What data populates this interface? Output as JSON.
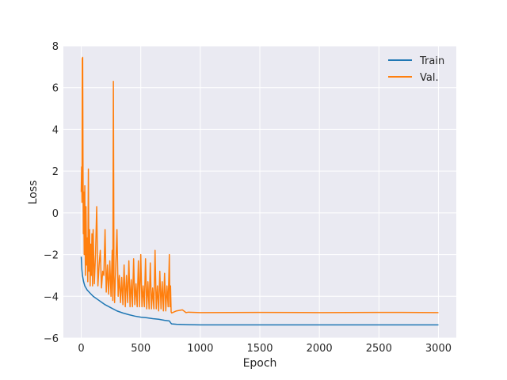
{
  "chart_data": {
    "type": "line",
    "title": "",
    "xlabel": "Epoch",
    "ylabel": "Loss",
    "xlim": [
      -150,
      3150
    ],
    "ylim": [
      -6,
      8
    ],
    "x_ticks": [
      0,
      500,
      1000,
      1500,
      2000,
      2500,
      3000
    ],
    "y_ticks": [
      -6,
      -4,
      -2,
      0,
      2,
      4,
      6,
      8
    ],
    "grid": true,
    "legend_position": "top-right",
    "background_color": "#eaeaf2",
    "grid_color": "#ffffff",
    "series": [
      {
        "name": "Train",
        "color": "#1f77b4",
        "x": [
          0,
          5,
          10,
          20,
          30,
          50,
          75,
          100,
          150,
          200,
          250,
          300,
          350,
          400,
          450,
          500,
          550,
          600,
          650,
          700,
          740,
          755,
          760,
          800,
          900,
          1000,
          1500,
          2000,
          2500,
          3000
        ],
        "y": [
          -2.1,
          -2.7,
          -3.0,
          -3.3,
          -3.5,
          -3.7,
          -3.85,
          -4.0,
          -4.2,
          -4.4,
          -4.55,
          -4.7,
          -4.8,
          -4.88,
          -4.95,
          -5.0,
          -5.03,
          -5.07,
          -5.1,
          -5.15,
          -5.18,
          -5.3,
          -5.32,
          -5.34,
          -5.36,
          -5.37,
          -5.37,
          -5.37,
          -5.37,
          -5.37
        ]
      },
      {
        "name": "Val.",
        "color": "#ff7f0e",
        "x": [
          0,
          3,
          6,
          8,
          10,
          12,
          15,
          18,
          20,
          25,
          30,
          35,
          40,
          45,
          50,
          55,
          60,
          65,
          70,
          75,
          80,
          85,
          90,
          95,
          100,
          110,
          120,
          130,
          140,
          150,
          160,
          170,
          180,
          190,
          200,
          210,
          220,
          230,
          240,
          250,
          260,
          265,
          270,
          275,
          280,
          290,
          300,
          310,
          320,
          330,
          340,
          350,
          360,
          370,
          380,
          390,
          400,
          410,
          420,
          430,
          440,
          450,
          460,
          470,
          480,
          490,
          500,
          510,
          520,
          530,
          540,
          550,
          560,
          570,
          580,
          590,
          600,
          610,
          620,
          630,
          640,
          650,
          660,
          670,
          680,
          690,
          700,
          710,
          720,
          730,
          740,
          745,
          750,
          755,
          760,
          800,
          850,
          880,
          900,
          1000,
          1500,
          2000,
          2500,
          3000
        ],
        "y": [
          1.0,
          2.2,
          0.5,
          7.4,
          1.5,
          7.45,
          2.0,
          -1.0,
          1.0,
          -2.0,
          1.3,
          -3.0,
          0.3,
          -2.5,
          -1.2,
          -3.3,
          2.1,
          -2.8,
          -0.8,
          -3.5,
          -1.5,
          -3.0,
          -1.0,
          -3.5,
          -0.8,
          -3.4,
          -2.0,
          0.3,
          -3.5,
          -2.5,
          -1.8,
          -3.6,
          -2.8,
          -3.0,
          -0.8,
          -3.8,
          -2.5,
          -3.9,
          -2.3,
          -4.0,
          -1.8,
          -4.2,
          6.3,
          -3.0,
          -4.3,
          -2.5,
          -0.8,
          -4.0,
          -3.0,
          -4.3,
          -3.1,
          -4.4,
          -2.5,
          -4.5,
          -3.0,
          -4.3,
          -2.3,
          -4.5,
          -3.2,
          -4.5,
          -2.2,
          -4.4,
          -3.4,
          -4.5,
          -2.3,
          -4.5,
          -2.0,
          -4.5,
          -3.5,
          -4.5,
          -2.2,
          -4.6,
          -3.3,
          -4.6,
          -2.4,
          -4.6,
          -3.6,
          -4.6,
          -1.8,
          -4.6,
          -3.5,
          -4.7,
          -2.8,
          -4.6,
          -3.3,
          -4.7,
          -2.9,
          -4.7,
          -3.5,
          -4.5,
          -2.0,
          -4.5,
          -3.5,
          -4.75,
          -4.8,
          -4.7,
          -4.65,
          -4.78,
          -4.76,
          -4.78,
          -4.77,
          -4.78,
          -4.77,
          -4.78
        ]
      }
    ]
  }
}
